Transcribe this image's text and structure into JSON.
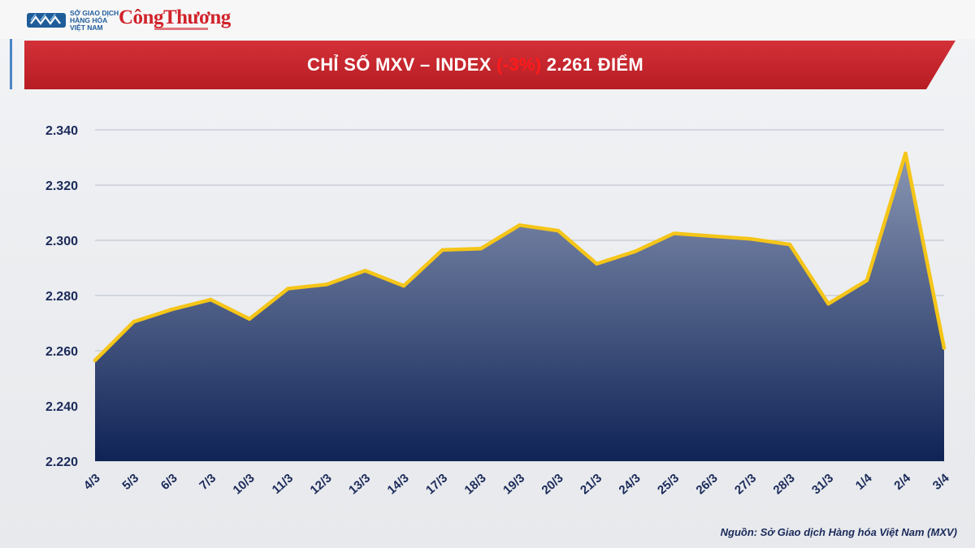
{
  "header": {
    "logo_text": [
      "SỞ GIAO DỊCH",
      "HÀNG HÓA",
      "VIỆT NAM"
    ],
    "brand": "CôngThương",
    "title_prefix": "CHỈ SỐ MXV – INDEX ",
    "title_change": "(-3%)",
    "title_suffix": " 2.261 ĐIỂM"
  },
  "colors": {
    "banner": "#c9252b",
    "line": "#f5c518",
    "area_top": "#8a97b4",
    "area_bottom": "#0f2356",
    "axis_text": "#1b2a5a",
    "grid": "#b9bfcc"
  },
  "chart_data": {
    "type": "area",
    "categories": [
      "4/3",
      "5/3",
      "6/3",
      "7/3",
      "10/3",
      "11/3",
      "12/3",
      "13/3",
      "14/3",
      "17/3",
      "18/3",
      "19/3",
      "20/3",
      "21/3",
      "24/3",
      "25/3",
      "26/3",
      "27/3",
      "28/3",
      "31/3",
      "1/4",
      "2/4",
      "3/4"
    ],
    "series": [
      {
        "values": [
          2256.5,
          2270.5,
          2275.0,
          2278.5,
          2271.5,
          2282.5,
          2284.0,
          2289.0,
          2283.5,
          2296.5,
          2297.0,
          2305.5,
          2303.5,
          2291.5,
          2296.0,
          2302.5,
          2301.5,
          2300.5,
          2298.5,
          2277.0,
          2285.5,
          2331.5,
          2261.0
        ]
      }
    ],
    "yticks": [
      "2.220",
      "2.240",
      "2.260",
      "2.280",
      "2.300",
      "2.320",
      "2.340"
    ],
    "ylim": [
      2220,
      2340
    ],
    "grid": true,
    "legend": "none"
  },
  "footer": {
    "source": "Nguồn: Sở Giao dịch Hàng hóa Việt Nam (MXV)"
  }
}
